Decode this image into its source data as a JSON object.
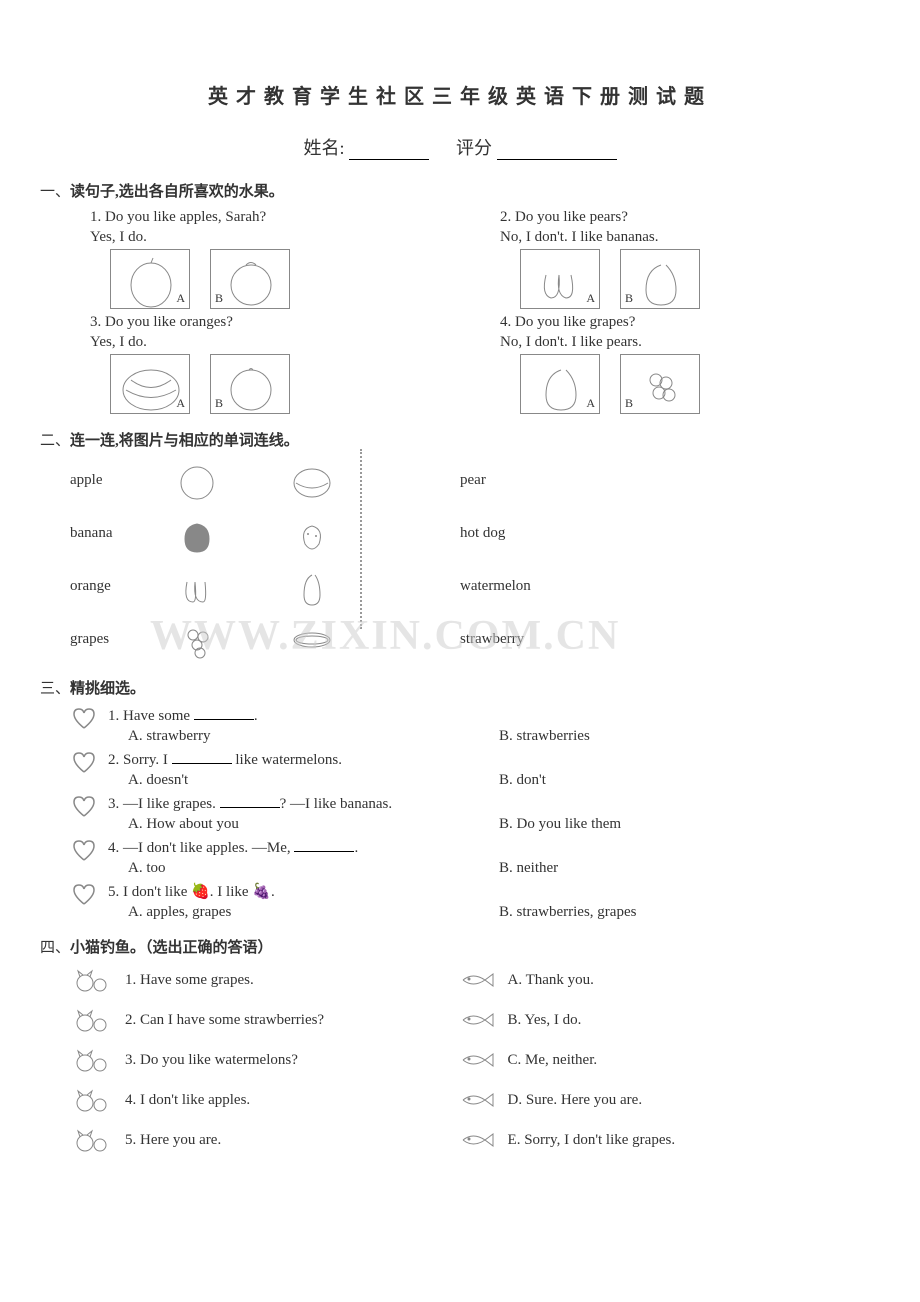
{
  "title": "英才教育学生社区三年级英语下册测试题",
  "header": {
    "name_label": "姓名:",
    "score_label": "评分"
  },
  "section1": {
    "num": "一、",
    "title": "读句子,选出各自所喜欢的水果。",
    "q1": {
      "text": "1. Do you like apples, Sarah?",
      "ans": "Yes, I do."
    },
    "q2": {
      "text": "2. Do you like pears?",
      "ans": "No, I don't. I like bananas."
    },
    "q3": {
      "text": "3. Do you like oranges?",
      "ans": "Yes, I do."
    },
    "q4": {
      "text": "4. Do you like grapes?",
      "ans": "No, I don't. I like pears."
    },
    "labelA": "A",
    "labelB": "B"
  },
  "section2": {
    "num": "二、",
    "title": "连一连,将图片与相应的单词连线。",
    "left": [
      "apple",
      "banana",
      "orange",
      "grapes"
    ],
    "right": [
      "pear",
      "hot dog",
      "watermelon",
      "strawberry"
    ]
  },
  "section3": {
    "num": "三、",
    "title": "精挑细选。",
    "items": [
      {
        "q": "1. Have some ________.",
        "a": "A. strawberry",
        "b": "B. strawberries"
      },
      {
        "q": "2. Sorry. I ________ like watermelons.",
        "a": "A. doesn't",
        "b": "B. don't"
      },
      {
        "q": "3. —I like grapes. ________? —I like bananas.",
        "a": "A. How about you",
        "b": "B. Do you like them"
      },
      {
        "q": "4. —I don't like apples. —Me, ________.",
        "a": "A. too",
        "b": "B. neither"
      },
      {
        "q": "5. I don't like 🍓. I like 🍇.",
        "a": "A. apples, grapes",
        "b": "B. strawberries, grapes"
      }
    ]
  },
  "section4": {
    "num": "四、",
    "title": "小猫钓鱼。（选出正确的答语）",
    "left": [
      "1. Have some grapes.",
      "2. Can I have some strawberries?",
      "3. Do you like watermelons?",
      "4. I don't like apples.",
      "5. Here you are."
    ],
    "right": [
      "A. Thank you.",
      "B. Yes, I do.",
      "C. Me, neither.",
      "D. Sure. Here you are.",
      "E. Sorry, I don't like grapes."
    ]
  },
  "watermark": "WWW.ZIXIN.COM.CN"
}
